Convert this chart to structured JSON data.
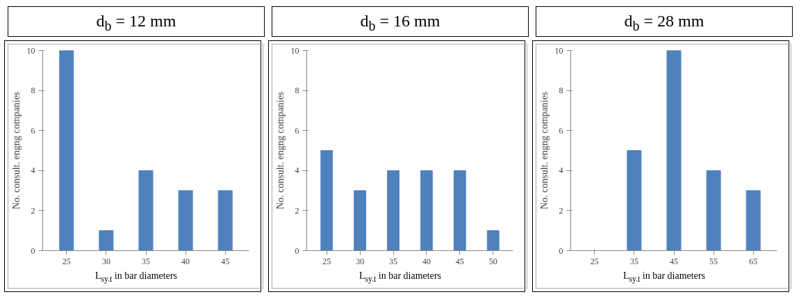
{
  "chart_data": [
    {
      "type": "bar",
      "title": "d$_{b}$ = 12 mm",
      "xlabel": "L$_{sy.t}$ in bar diameters",
      "ylabel": "No. consult. engng companies",
      "categories": [
        "25",
        "30",
        "35",
        "40",
        "45"
      ],
      "values": [
        10,
        1,
        4,
        3,
        3
      ],
      "color": "#4f81bd",
      "ylim": [
        0,
        10
      ],
      "yticks": [
        0,
        2,
        4,
        6,
        8,
        10
      ]
    },
    {
      "type": "bar",
      "title": "d$_{b}$ = 16 mm",
      "xlabel": "L$_{sy.t}$ in bar diameters",
      "ylabel": "No. consult. engng companies",
      "categories": [
        "25",
        "30",
        "35",
        "40",
        "45",
        "50"
      ],
      "values": [
        5,
        3,
        4,
        4,
        4,
        1
      ],
      "color": "#4f81bd",
      "ylim": [
        0,
        10
      ],
      "yticks": [
        0,
        2,
        4,
        6,
        8,
        10
      ]
    },
    {
      "type": "bar",
      "title": "d$_{b}$ = 28 mm",
      "xlabel": "L$_{sy.t}$ in bar diameters",
      "ylabel": "No. consult. engng companies",
      "categories": [
        "25",
        "35",
        "45",
        "55",
        "65"
      ],
      "values": [
        0,
        5,
        10,
        4,
        3
      ],
      "color": "#4f81bd",
      "ylim": [
        0,
        10
      ],
      "yticks": [
        0,
        2,
        4,
        6,
        8,
        10
      ]
    }
  ]
}
